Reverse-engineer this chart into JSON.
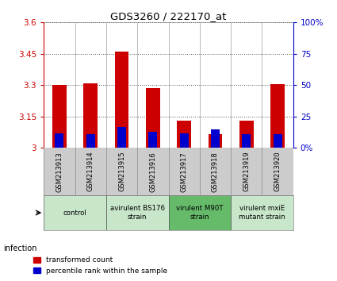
{
  "title": "GDS3260 / 222170_at",
  "samples": [
    "GSM213913",
    "GSM213914",
    "GSM213915",
    "GSM213916",
    "GSM213917",
    "GSM213918",
    "GSM213919",
    "GSM213920"
  ],
  "red_values": [
    3.3,
    3.31,
    3.46,
    3.285,
    3.13,
    3.065,
    3.13,
    3.305
  ],
  "blue_percentiles": [
    12,
    11,
    17,
    13,
    12,
    15,
    11,
    11
  ],
  "ylim_left": [
    3.0,
    3.6
  ],
  "ylim_right": [
    0,
    100
  ],
  "yticks_left": [
    3.0,
    3.15,
    3.3,
    3.45,
    3.6
  ],
  "ytick_labels_left": [
    "3",
    "3.15",
    "3.3",
    "3.45",
    "3.6"
  ],
  "ytick_labels_right": [
    "0%",
    "25",
    "50",
    "75",
    "100%"
  ],
  "yticks_right": [
    0,
    25,
    50,
    75,
    100
  ],
  "groups": [
    {
      "label": "control",
      "samples": [
        0,
        1
      ],
      "color": "#c8e6c9"
    },
    {
      "label": "avirulent BS176\nstrain",
      "samples": [
        2,
        3
      ],
      "color": "#c8e6c9"
    },
    {
      "label": "virulent M90T\nstrain",
      "samples": [
        4,
        5
      ],
      "color": "#66bb6a"
    },
    {
      "label": "virulent mxiE\nmutant strain",
      "samples": [
        6,
        7
      ],
      "color": "#c8e6c9"
    }
  ],
  "red_color": "#cc0000",
  "blue_color": "#0000cc",
  "bar_width": 0.45,
  "blue_bar_width": 0.28,
  "sample_bg_color": "#cccccc",
  "plot_bg": "#ffffff",
  "legend_red": "transformed count",
  "legend_blue": "percentile rank within the sample",
  "infection_label": "infection"
}
